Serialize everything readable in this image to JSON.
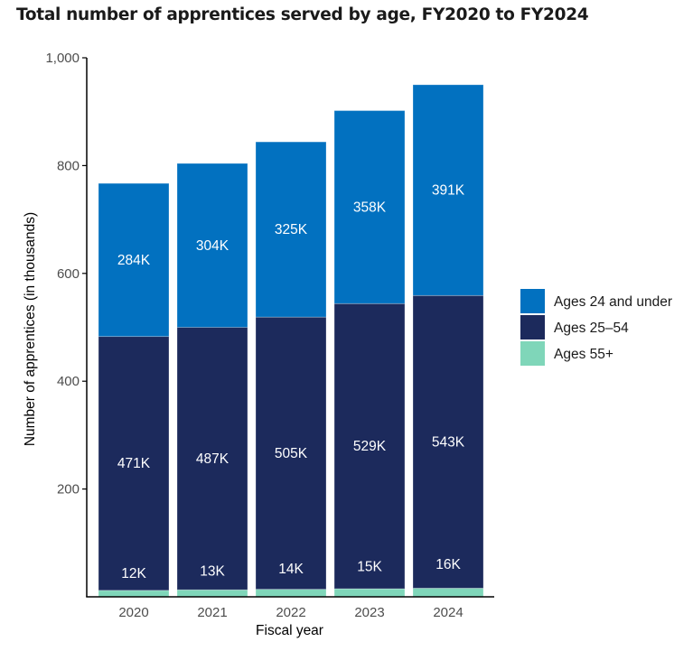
{
  "chart_data": {
    "type": "bar",
    "stacked": true,
    "title": "Total number of apprentices served by age, FY2020 to FY2024",
    "xlabel": "Fiscal year",
    "ylabel": "Number of apprentices (in thousands)",
    "ylim": [
      0,
      1000
    ],
    "yticks": [
      200,
      400,
      600,
      800,
      1000
    ],
    "ytick_labels": [
      "200",
      "400",
      "600",
      "800",
      "1,000"
    ],
    "grid": false,
    "legend_position": "right",
    "categories": [
      "2020",
      "2021",
      "2022",
      "2023",
      "2024"
    ],
    "series": [
      {
        "name": "Ages 55+",
        "color": "#7fd6b9",
        "values": [
          12,
          13,
          14,
          15,
          16
        ],
        "labels": [
          "12K",
          "13K",
          "14K",
          "15K",
          "16K"
        ]
      },
      {
        "name": "Ages 25–54",
        "color": "#1c2a5c",
        "values": [
          471,
          487,
          505,
          529,
          543
        ],
        "labels": [
          "471K",
          "487K",
          "505K",
          "529K",
          "543K"
        ]
      },
      {
        "name": "Ages 24 and under",
        "color": "#0271c0",
        "values": [
          284,
          304,
          325,
          358,
          391
        ],
        "labels": [
          "284K",
          "304K",
          "325K",
          "358K",
          "391K"
        ]
      }
    ],
    "legend_order": [
      "Ages 24 and under",
      "Ages 25–54",
      "Ages 55+"
    ]
  }
}
